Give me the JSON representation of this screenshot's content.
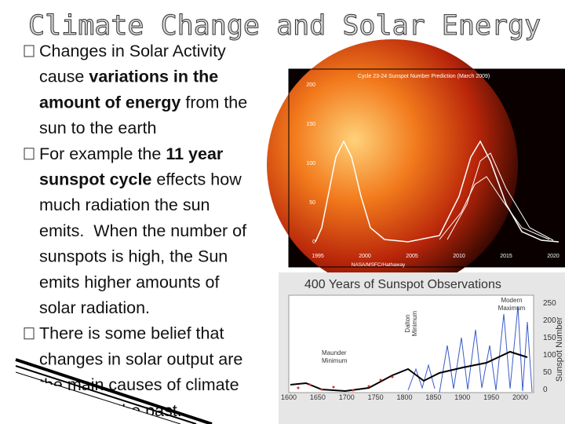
{
  "title": "Climate Change and Solar Energy",
  "bullets": [
    {
      "lines": [
        [
          {
            "text": "Changes in Solar Activity"
          }
        ],
        [
          {
            "text": "cause "
          },
          {
            "text": "variations in the",
            "bold": true
          }
        ],
        [
          {
            "text": "amount of energy",
            "bold": true
          },
          {
            "text": " from the"
          }
        ],
        [
          {
            "text": "sun to the earth"
          }
        ]
      ]
    },
    {
      "lines": [
        [
          {
            "text": "For example the "
          },
          {
            "text": "11 year",
            "bold": true
          }
        ],
        [
          {
            "text": "sunspot cycle",
            "bold": true
          },
          {
            "text": " effects how"
          }
        ],
        [
          {
            "text": "much radiation the sun"
          }
        ],
        [
          {
            "text": "emits.  When the number of"
          }
        ],
        [
          {
            "text": "sunspots is high, the Sun"
          }
        ],
        [
          {
            "text": "emits higher amounts of"
          }
        ],
        [
          {
            "text": "solar radiation."
          }
        ]
      ]
    },
    {
      "lines": [
        [
          {
            "text": "There is some belief that"
          }
        ],
        [
          {
            "text": "changes in solar output are"
          }
        ],
        [
          {
            "text": "the main causes of climate"
          }
        ],
        [
          {
            "text": "change in the past."
          }
        ]
      ]
    }
  ],
  "figures": [
    {
      "title": "Cycle 23-24 Sunspot Number Prediction (March 2009)",
      "yticks": [
        "200",
        "150",
        "100",
        "50",
        "0"
      ],
      "xticks": [
        "1995",
        "2000",
        "2005",
        "2010",
        "2015",
        "2020"
      ],
      "credit": "NASA/MSFC/Hathaway"
    },
    {
      "title": "400 Years of Sunspot Observations",
      "annotations": [
        [
          "Modern",
          "Maximum"
        ],
        [
          "Dalton",
          "Minimum"
        ],
        [
          "Maunder",
          "Minimum"
        ]
      ],
      "ylabel": "Sunspot Number",
      "yticks": [
        "250",
        "200",
        "150",
        "100",
        "50",
        "0"
      ],
      "xticks": [
        "1600",
        "1650",
        "1700",
        "1750",
        "1800",
        "1850",
        "1900",
        "1950",
        "2000"
      ]
    }
  ]
}
